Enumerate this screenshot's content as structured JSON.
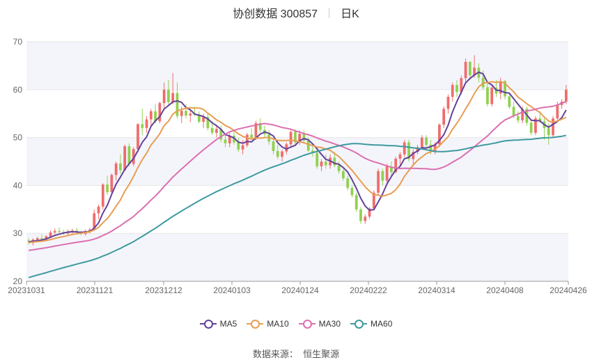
{
  "header": {
    "title": "协创数据 300857",
    "period": "日K"
  },
  "source": {
    "label": "数据来源：",
    "name": "恒生聚源"
  },
  "chart_data": {
    "type": "candlestick",
    "ylim": [
      20,
      70
    ],
    "yticks": [
      20,
      30,
      40,
      50,
      60,
      70
    ],
    "x_tick_labels": [
      "20231031",
      "20231121",
      "20231212",
      "20240103",
      "20240124",
      "20240222",
      "20240314",
      "20240408",
      "20240426"
    ],
    "up_color": "#f06c6c",
    "down_color": "#8fd14f",
    "grid": true,
    "legend_position": "bottom-center",
    "candles": [
      [
        28.5,
        29.0,
        27.7,
        28.3
      ],
      [
        28.3,
        29.0,
        27.5,
        28.7
      ],
      [
        28.7,
        29.3,
        28.3,
        29.0
      ],
      [
        29.0,
        29.8,
        28.6,
        28.8
      ],
      [
        28.8,
        29.6,
        28.4,
        29.4
      ],
      [
        29.4,
        30.6,
        29.0,
        30.2
      ],
      [
        30.2,
        31.0,
        29.8,
        30.5
      ],
      [
        30.5,
        31.2,
        30.0,
        30.3
      ],
      [
        30.3,
        30.7,
        29.7,
        30.0
      ],
      [
        30.0,
        30.8,
        29.6,
        30.4
      ],
      [
        30.4,
        31.0,
        30.0,
        30.6
      ],
      [
        30.6,
        31.2,
        30.1,
        30.2
      ],
      [
        30.2,
        30.6,
        29.6,
        29.9
      ],
      [
        29.9,
        30.8,
        29.5,
        30.5
      ],
      [
        30.5,
        31.2,
        30.0,
        30.8
      ],
      [
        30.8,
        35.0,
        30.5,
        34.2
      ],
      [
        34.2,
        36.0,
        33.0,
        35.6
      ],
      [
        35.6,
        40.5,
        35.0,
        40.2
      ],
      [
        40.2,
        42.0,
        38.0,
        38.6
      ],
      [
        38.6,
        42.5,
        38.0,
        42.2
      ],
      [
        42.2,
        45.0,
        41.0,
        44.6
      ],
      [
        44.6,
        46.5,
        42.5,
        43.2
      ],
      [
        43.2,
        48.5,
        43.0,
        48.2
      ],
      [
        48.2,
        48.8,
        44.0,
        44.5
      ],
      [
        44.5,
        48.0,
        44.0,
        47.6
      ],
      [
        47.6,
        53.0,
        47.0,
        52.8
      ],
      [
        52.8,
        56.0,
        50.5,
        52.0
      ],
      [
        52.0,
        54.5,
        51.0,
        53.8
      ],
      [
        53.8,
        56.0,
        52.5,
        55.5
      ],
      [
        55.5,
        57.0,
        53.0,
        53.4
      ],
      [
        53.4,
        57.5,
        53.0,
        57.2
      ],
      [
        57.2,
        61.5,
        56.0,
        60.0
      ],
      [
        60.0,
        62.0,
        56.5,
        57.4
      ],
      [
        57.4,
        63.5,
        57.0,
        59.3
      ],
      [
        59.3,
        61.5,
        54.0,
        54.5
      ],
      [
        54.5,
        56.5,
        53.0,
        55.6
      ],
      [
        55.6,
        57.0,
        54.0,
        54.6
      ],
      [
        54.6,
        56.0,
        53.2,
        55.0
      ],
      [
        55.0,
        56.5,
        54.5,
        54.8
      ],
      [
        54.8,
        55.5,
        53.0,
        53.3
      ],
      [
        53.3,
        55.0,
        52.0,
        54.3
      ],
      [
        54.3,
        55.0,
        51.5,
        52.0
      ],
      [
        52.0,
        53.5,
        50.5,
        51.0
      ],
      [
        51.0,
        52.5,
        50.0,
        51.8
      ],
      [
        51.8,
        52.5,
        49.0,
        49.6
      ],
      [
        49.6,
        50.5,
        48.0,
        48.8
      ],
      [
        48.8,
        51.0,
        48.0,
        50.4
      ],
      [
        50.4,
        51.5,
        48.5,
        49.0
      ],
      [
        49.0,
        50.0,
        47.0,
        47.5
      ],
      [
        47.5,
        49.5,
        46.5,
        48.4
      ],
      [
        48.4,
        51.0,
        48.0,
        50.6
      ],
      [
        50.6,
        52.0,
        49.5,
        50.0
      ],
      [
        50.0,
        53.5,
        49.5,
        53.0
      ],
      [
        53.0,
        54.0,
        51.0,
        51.6
      ],
      [
        51.6,
        52.5,
        50.0,
        50.7
      ],
      [
        50.7,
        51.5,
        48.5,
        49.2
      ],
      [
        49.2,
        49.8,
        46.5,
        47.2
      ],
      [
        47.2,
        48.5,
        45.5,
        46.0
      ],
      [
        46.0,
        47.5,
        45.0,
        47.1
      ],
      [
        47.1,
        49.0,
        46.5,
        48.6
      ],
      [
        48.6,
        51.5,
        48.0,
        51.2
      ],
      [
        51.2,
        51.8,
        48.5,
        49.0
      ],
      [
        49.0,
        51.5,
        48.5,
        50.8
      ],
      [
        50.8,
        51.5,
        49.0,
        49.4
      ],
      [
        49.4,
        50.0,
        47.0,
        47.3
      ],
      [
        47.3,
        48.5,
        46.0,
        46.8
      ],
      [
        46.8,
        47.5,
        43.5,
        44.0
      ],
      [
        44.0,
        45.5,
        43.0,
        45.0
      ],
      [
        45.0,
        46.5,
        43.5,
        44.2
      ],
      [
        44.2,
        46.5,
        43.5,
        45.8
      ],
      [
        45.8,
        47.0,
        43.8,
        44.2
      ],
      [
        44.2,
        45.0,
        42.5,
        43.0
      ],
      [
        43.0,
        43.5,
        41.0,
        41.5
      ],
      [
        41.5,
        42.0,
        39.0,
        39.5
      ],
      [
        39.5,
        40.0,
        37.5,
        38.0
      ],
      [
        38.0,
        38.5,
        34.5,
        35.0
      ],
      [
        35.0,
        35.5,
        32.0,
        32.6
      ],
      [
        32.6,
        34.0,
        32.0,
        33.5
      ],
      [
        33.5,
        35.5,
        33.0,
        35.2
      ],
      [
        35.2,
        39.0,
        35.0,
        38.5
      ],
      [
        38.5,
        43.5,
        38.0,
        43.0
      ],
      [
        43.0,
        43.5,
        40.0,
        41.0
      ],
      [
        41.0,
        44.5,
        40.5,
        44.0
      ],
      [
        44.0,
        45.0,
        42.0,
        42.8
      ],
      [
        42.8,
        46.0,
        42.5,
        45.6
      ],
      [
        45.6,
        47.0,
        44.0,
        46.5
      ],
      [
        46.5,
        49.5,
        46.0,
        49.0
      ],
      [
        49.0,
        49.5,
        45.0,
        45.5
      ],
      [
        45.5,
        47.5,
        44.0,
        47.0
      ],
      [
        47.0,
        48.5,
        46.5,
        48.0
      ],
      [
        48.0,
        50.5,
        47.5,
        50.0
      ],
      [
        50.0,
        50.5,
        48.0,
        48.5
      ],
      [
        48.5,
        49.5,
        46.5,
        47.2
      ],
      [
        47.2,
        49.0,
        46.5,
        48.6
      ],
      [
        48.6,
        53.0,
        48.0,
        52.7
      ],
      [
        52.7,
        56.5,
        52.0,
        56.0
      ],
      [
        56.0,
        59.0,
        55.0,
        58.5
      ],
      [
        58.5,
        61.5,
        57.5,
        61.0
      ],
      [
        61.0,
        62.0,
        58.5,
        59.5
      ],
      [
        59.5,
        63.0,
        59.0,
        62.4
      ],
      [
        62.4,
        66.5,
        61.5,
        65.8
      ],
      [
        65.8,
        66.0,
        62.0,
        63.0
      ],
      [
        63.0,
        67.2,
        62.5,
        64.6
      ],
      [
        64.6,
        65.5,
        61.5,
        62.5
      ],
      [
        62.5,
        64.0,
        60.0,
        60.5
      ],
      [
        60.5,
        61.5,
        56.5,
        57.0
      ],
      [
        57.0,
        61.0,
        56.5,
        60.4
      ],
      [
        60.4,
        62.0,
        58.5,
        59.2
      ],
      [
        59.2,
        62.5,
        58.0,
        61.8
      ],
      [
        61.8,
        62.0,
        58.0,
        58.6
      ],
      [
        58.6,
        59.0,
        56.0,
        56.4
      ],
      [
        56.4,
        57.5,
        54.0,
        54.5
      ],
      [
        54.5,
        55.5,
        53.0,
        53.6
      ],
      [
        53.6,
        56.5,
        53.0,
        56.0
      ],
      [
        56.0,
        56.5,
        52.5,
        53.1
      ],
      [
        53.1,
        53.8,
        50.5,
        51.0
      ],
      [
        51.0,
        54.5,
        50.5,
        54.0
      ],
      [
        54.0,
        55.5,
        53.0,
        53.4
      ],
      [
        53.4,
        54.0,
        49.5,
        52.0
      ],
      [
        52.0,
        53.0,
        48.5,
        50.5
      ],
      [
        50.5,
        54.5,
        50.0,
        54.0
      ],
      [
        54.0,
        57.5,
        53.5,
        56.8
      ],
      [
        56.8,
        58.0,
        56.0,
        57.5
      ],
      [
        57.5,
        61.0,
        57.0,
        60.0
      ]
    ],
    "series": [
      {
        "name": "MA5",
        "color": "#62419a"
      },
      {
        "name": "MA10",
        "color": "#e89d52"
      },
      {
        "name": "MA30",
        "color": "#db6fb0"
      },
      {
        "name": "MA60",
        "color": "#3e9a9f"
      }
    ]
  }
}
